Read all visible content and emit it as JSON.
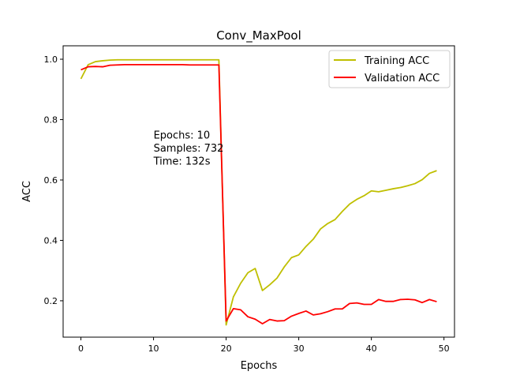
{
  "chart_data": {
    "type": "line",
    "title": "Conv_MaxPool",
    "xlabel": "Epochs",
    "ylabel": "ACC",
    "xlim": [
      -2.45,
      51.45
    ],
    "ylim": [
      0.0795,
      1.0445
    ],
    "xticks": [
      0,
      10,
      20,
      30,
      40,
      50
    ],
    "yticks": [
      0.2,
      0.4,
      0.6,
      0.8,
      1.0
    ],
    "xtick_labels": [
      "0",
      "10",
      "20",
      "30",
      "40",
      "50"
    ],
    "ytick_labels": [
      "0.2",
      "0.4",
      "0.6",
      "0.8",
      "1.0"
    ],
    "grid": false,
    "legend_position": "top-right",
    "annotation": [
      "Epochs: 10",
      "Samples: 732",
      "Time: 132s"
    ],
    "annotation_anchor": [
      10,
      0.75
    ],
    "x": [
      0,
      1,
      2,
      3,
      4,
      5,
      6,
      7,
      8,
      9,
      10,
      11,
      12,
      13,
      14,
      15,
      16,
      17,
      18,
      19,
      20,
      21,
      22,
      23,
      24,
      25,
      26,
      27,
      28,
      29,
      30,
      31,
      32,
      33,
      34,
      35,
      36,
      37,
      38,
      39,
      40,
      41,
      42,
      43,
      44,
      45,
      46,
      47,
      48,
      49
    ],
    "series": [
      {
        "name": "Training ACC",
        "color": "#bfbf00",
        "values": [
          0.935,
          0.982,
          0.992,
          0.995,
          0.997,
          0.998,
          0.998,
          0.998,
          0.998,
          0.998,
          0.998,
          0.998,
          0.998,
          0.998,
          0.998,
          0.998,
          0.998,
          0.998,
          0.998,
          0.998,
          0.12,
          0.213,
          0.258,
          0.293,
          0.307,
          0.234,
          0.253,
          0.275,
          0.312,
          0.343,
          0.352,
          0.38,
          0.404,
          0.438,
          0.456,
          0.469,
          0.496,
          0.52,
          0.536,
          0.548,
          0.564,
          0.561,
          0.566,
          0.571,
          0.575,
          0.581,
          0.588,
          0.601,
          0.622,
          0.631
        ]
      },
      {
        "name": "Validation ACC",
        "color": "#ff0000",
        "values": [
          0.965,
          0.975,
          0.976,
          0.975,
          0.98,
          0.981,
          0.982,
          0.982,
          0.982,
          0.982,
          0.982,
          0.982,
          0.982,
          0.982,
          0.982,
          0.981,
          0.981,
          0.981,
          0.981,
          0.981,
          0.133,
          0.174,
          0.17,
          0.147,
          0.139,
          0.124,
          0.138,
          0.133,
          0.134,
          0.149,
          0.158,
          0.166,
          0.153,
          0.157,
          0.164,
          0.173,
          0.173,
          0.191,
          0.193,
          0.188,
          0.188,
          0.204,
          0.198,
          0.198,
          0.204,
          0.205,
          0.203,
          0.194,
          0.204,
          0.197
        ]
      }
    ]
  }
}
